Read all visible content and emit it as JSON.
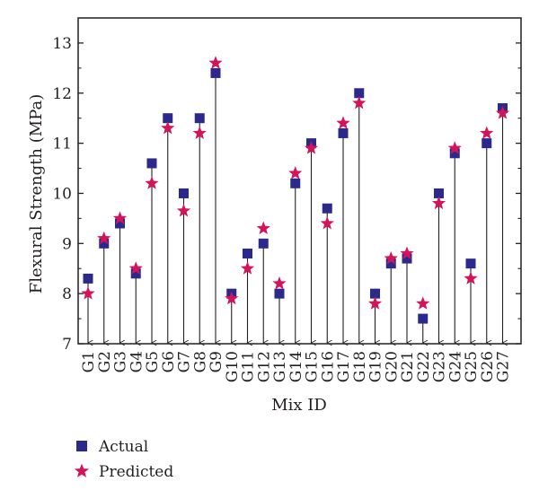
{
  "chart_data": {
    "type": "scatter",
    "xlabel": "Mix ID",
    "ylabel": "Flexural Strength (MPa)",
    "ylim": [
      7,
      13.5
    ],
    "yticks": [
      7,
      8,
      9,
      10,
      11,
      12,
      13
    ],
    "categories": [
      "G1",
      "G2",
      "G3",
      "G4",
      "G5",
      "G6",
      "G7",
      "G8",
      "G9",
      "G10",
      "G11",
      "G12",
      "G13",
      "G14",
      "G15",
      "G16",
      "G17",
      "G18",
      "G19",
      "G20",
      "G21",
      "G22",
      "G23",
      "G24",
      "G25",
      "G26",
      "G27"
    ],
    "series": [
      {
        "name": "Actual",
        "marker": "square",
        "color": "#2b2a8c",
        "values": [
          8.3,
          9.0,
          9.4,
          8.4,
          10.6,
          11.5,
          10.0,
          11.5,
          12.4,
          8.0,
          8.8,
          9.0,
          8.0,
          10.2,
          11.0,
          9.7,
          11.2,
          12.0,
          8.0,
          8.6,
          8.7,
          7.5,
          10.0,
          10.8,
          8.6,
          11.0,
          11.7
        ]
      },
      {
        "name": "Predicted",
        "marker": "star",
        "color": "#d4145a",
        "values": [
          8.0,
          9.1,
          9.5,
          8.5,
          10.2,
          11.3,
          9.65,
          11.2,
          12.6,
          7.9,
          8.5,
          9.3,
          8.2,
          10.4,
          10.9,
          9.4,
          11.4,
          11.8,
          7.8,
          8.7,
          8.8,
          7.8,
          9.8,
          10.9,
          8.3,
          11.2,
          11.6
        ]
      }
    ],
    "drop_lines": "down arrows from each actual value to the x-axis",
    "legend_position": "bottom-left"
  }
}
